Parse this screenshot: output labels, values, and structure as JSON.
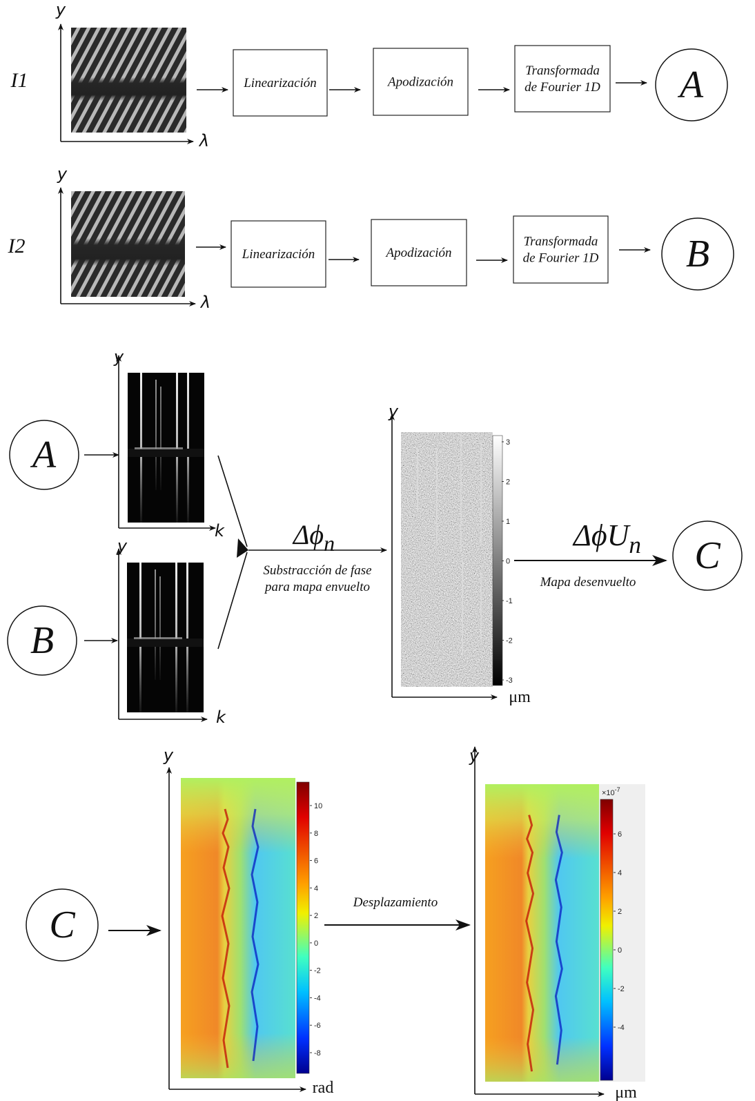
{
  "rows": [
    {
      "signal": "I1",
      "y_axis": "y",
      "x_axis": "λ",
      "steps": [
        {
          "lines": [
            "Linearización"
          ]
        },
        {
          "lines": [
            "Apodización"
          ]
        },
        {
          "lines": [
            "Transformada",
            "de Fourier 1D"
          ]
        }
      ],
      "output": "A"
    },
    {
      "signal": "I2",
      "y_axis": "y",
      "x_axis": "λ",
      "steps": [
        {
          "lines": [
            "Linearización"
          ]
        },
        {
          "lines": [
            "Apodización"
          ]
        },
        {
          "lines": [
            "Transformada",
            "de Fourier 1D"
          ]
        }
      ],
      "output": "B"
    }
  ],
  "phase": {
    "inputs": [
      {
        "label": "A",
        "y_axis": "y",
        "x_axis": "k"
      },
      {
        "label": "B",
        "y_axis": "y",
        "x_axis": "k"
      }
    ],
    "operator": {
      "symbol": "Δϕ",
      "subscript": "n"
    },
    "operator_caption": [
      "Substracción de fase",
      "para mapa envuelto"
    ],
    "wrapped_map": {
      "y_axis": "y",
      "x_axis": "μm",
      "colorbar_ticks": [
        3,
        2,
        1,
        0,
        -1,
        -2,
        -3
      ]
    },
    "unwrap": {
      "symbol": "ΔϕU",
      "subscript": "n"
    },
    "unwrap_caption": "Mapa desenvuelto",
    "output": "C"
  },
  "displacement": {
    "input": "C",
    "phase_map": {
      "y_axis": "y",
      "x_axis": "rad",
      "colorbar_ticks": [
        10,
        8,
        6,
        4,
        2,
        0,
        -2,
        -4,
        -6,
        -8
      ]
    },
    "step": "Desplazamiento",
    "displacement_map": {
      "y_axis": "y",
      "x_axis": "μm",
      "colorbar_multiplier": {
        "base": "×10",
        "exponent": "-7"
      },
      "colorbar_ticks": [
        6,
        4,
        2,
        0,
        -2,
        -4
      ]
    }
  }
}
